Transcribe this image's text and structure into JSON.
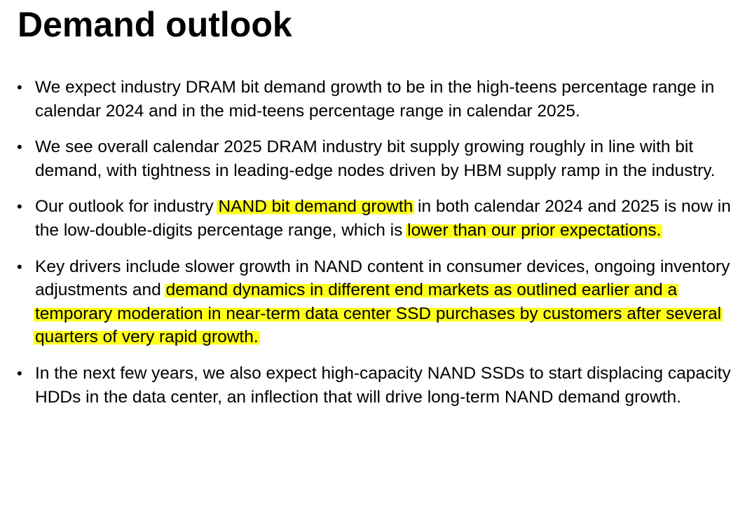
{
  "title": "Demand outlook",
  "bullet_symbol": "•",
  "bullets": [
    {
      "parts": [
        {
          "text": "We expect industry DRAM bit demand growth to be in the high-teens percentage range in calendar 2024 and in the mid-teens percentage range in calendar 2025.",
          "highlight": false
        }
      ]
    },
    {
      "parts": [
        {
          "text": "We see overall calendar 2025 DRAM industry bit supply growing roughly in line with bit demand, with tightness in leading-edge nodes driven by HBM supply ramp in the industry.",
          "highlight": false
        }
      ]
    },
    {
      "parts": [
        {
          "text": "Our outlook for industry ",
          "highlight": false
        },
        {
          "text": "NAND bit demand growth",
          "highlight": true
        },
        {
          "text": " in both calendar 2024 and 2025 is now in the low-double-digits percentage range, which is ",
          "highlight": false
        },
        {
          "text": "lower than our prior expectations.",
          "highlight": true
        }
      ]
    },
    {
      "parts": [
        {
          "text": "Key drivers include slower growth in NAND content in consumer devices, ongoing inventory adjustments and ",
          "highlight": false
        },
        {
          "text": "demand dynamics in different end markets as outlined earlier and a temporary moderation in near-term data center SSD purchases by customers after several quarters of very rapid growth.",
          "highlight": true
        }
      ]
    },
    {
      "parts": [
        {
          "text": "In the next few years, we also expect high-capacity NAND SSDs to start displacing capacity HDDs in the data center, an inflection that will drive long-term NAND demand growth.",
          "highlight": false
        }
      ]
    }
  ],
  "colors": {
    "highlight": "#ffff1a",
    "text": "#000000",
    "background": "#ffffff"
  }
}
